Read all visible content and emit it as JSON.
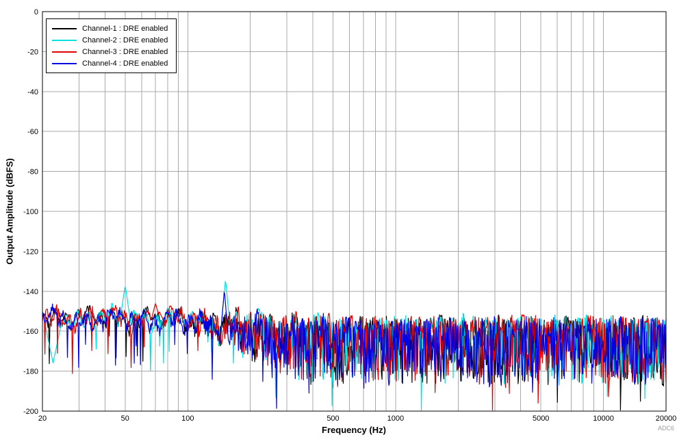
{
  "figure": {
    "watermark": "ADC6",
    "background_color": "#FFFFFF",
    "grid_color": "#A8A8A8",
    "axis_color": "#000000"
  },
  "chart_data": {
    "type": "line",
    "title": "",
    "xlabel": "Frequency (Hz)",
    "ylabel": "Output Amplitude (dBFS)",
    "x_scale": "log",
    "xlim": [
      20,
      20000
    ],
    "ylim": [
      -200,
      0
    ],
    "xticks": [
      20,
      50,
      100,
      500,
      1000,
      5000,
      10000,
      20000
    ],
    "xtick_labels": [
      "20",
      "50",
      "100",
      "500",
      "1000",
      "5000",
      "10000",
      "20000"
    ],
    "yticks": [
      0,
      -20,
      -40,
      -60,
      -80,
      -100,
      -120,
      -140,
      -160,
      -180,
      -200
    ],
    "ytick_labels": [
      "0",
      "-20",
      "-40",
      "-60",
      "-80",
      "-100",
      "-120",
      "-140",
      "-160",
      "-180",
      "-200"
    ],
    "grid": true,
    "legend_position": "top-left",
    "noise_summary": {
      "low_freq_floor_dbfs": -152,
      "high_freq_envelope_top_dbfs": -149,
      "high_freq_envelope_bottom_dbfs": -190,
      "description": "FFT noise floor near -160 dBFS for all four channels; smooth ripple below ~80 Hz, dense spikes deepening toward -195 dBFS above ~300 Hz"
    },
    "series": [
      {
        "name": "Channel-1 : DRE enabled",
        "color": "#000000",
        "seed": 101,
        "baseline_dbfs": -151,
        "peaks": [
          {
            "freq_hz": 34,
            "level_dbfs": -149,
            "slope_db_per_decade": 300
          }
        ],
        "dips": []
      },
      {
        "name": "Channel-2 : DRE enabled",
        "color": "#00DFE0",
        "seed": 202,
        "baseline_dbfs": -151,
        "peaks": [
          {
            "freq_hz": 50,
            "level_dbfs": -137,
            "slope_db_per_decade": 700
          },
          {
            "freq_hz": 152,
            "level_dbfs": -134,
            "slope_db_per_decade": 1100
          }
        ],
        "dips": [
          {
            "freq_hz": 22.5,
            "level_dbfs": -176,
            "slope_db_per_decade": 500
          }
        ]
      },
      {
        "name": "Channel-3 : DRE enabled",
        "color": "#E10000",
        "seed": 303,
        "baseline_dbfs": -150.5,
        "peaks": [
          {
            "freq_hz": 70,
            "level_dbfs": -146,
            "slope_db_per_decade": 400
          }
        ],
        "dips": []
      },
      {
        "name": "Channel-4 : DRE enabled",
        "color": "#0000E1",
        "seed": 404,
        "baseline_dbfs": -151.5,
        "peaks": [
          {
            "freq_hz": 150,
            "level_dbfs": -139,
            "slope_db_per_decade": 1300
          }
        ],
        "dips": []
      }
    ]
  }
}
